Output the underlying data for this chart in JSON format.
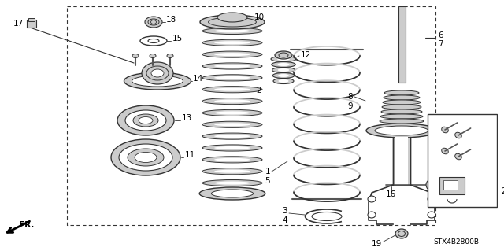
{
  "bg_color": "#ffffff",
  "line_color": "#333333",
  "diagram_id": "STX4B2800B",
  "fr_label": "FR.",
  "figsize": [
    6.4,
    3.19
  ],
  "dpi": 100
}
